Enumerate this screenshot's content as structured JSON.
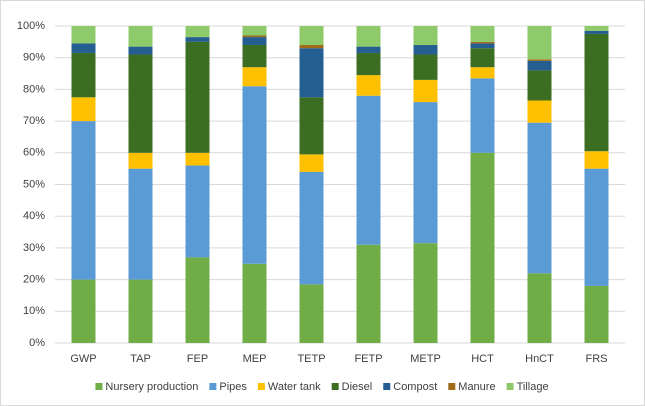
{
  "chart_data": {
    "type": "stacked_bar",
    "categories": [
      "GWP",
      "TAP",
      "FEP",
      "MEP",
      "TETP",
      "FETP",
      "METP",
      "HCT",
      "HnCT",
      "FRS"
    ],
    "series": [
      {
        "name": "Nursery production",
        "color": "#70ad47",
        "values": [
          20,
          20,
          27,
          25,
          18.5,
          31,
          31.5,
          60,
          22,
          18
        ]
      },
      {
        "name": "Pipes",
        "color": "#5b9bd5",
        "values": [
          50,
          35,
          29,
          56,
          35.5,
          47,
          44.5,
          23.5,
          47.5,
          37
        ]
      },
      {
        "name": "Water tank",
        "color": "#ffc000",
        "values": [
          7.5,
          5,
          4,
          6,
          5.5,
          6.5,
          7,
          3.5,
          7,
          5.5
        ]
      },
      {
        "name": "Diesel",
        "color": "#3b6e22",
        "values": [
          14,
          31,
          35,
          7,
          18,
          7,
          8,
          6,
          9.5,
          37
        ]
      },
      {
        "name": "Compost",
        "color": "#255e91",
        "values": [
          3,
          2.5,
          1.5,
          2.5,
          15.5,
          2,
          3,
          1.5,
          3,
          1
        ]
      },
      {
        "name": "Manure",
        "color": "#9e6b19",
        "values": [
          0,
          0,
          0,
          0.5,
          1,
          0,
          0,
          0.5,
          0.5,
          0
        ]
      },
      {
        "name": "Tillage",
        "color": "#8fca6a",
        "values": [
          5.5,
          6.5,
          3.5,
          3,
          6,
          6.5,
          6,
          5,
          10.5,
          1.5
        ]
      }
    ],
    "ylim": [
      0,
      100
    ],
    "yticks": [
      {
        "value": 0,
        "label": "0%"
      },
      {
        "value": 10,
        "label": "10%"
      },
      {
        "value": 20,
        "label": "20%"
      },
      {
        "value": 30,
        "label": "30%"
      },
      {
        "value": 40,
        "label": "40%"
      },
      {
        "value": 50,
        "label": "50%"
      },
      {
        "value": 60,
        "label": "60%"
      },
      {
        "value": 70,
        "label": "70%"
      },
      {
        "value": 80,
        "label": "80%"
      },
      {
        "value": 90,
        "label": "90%"
      },
      {
        "value": 100,
        "label": "100%"
      }
    ],
    "grid": true,
    "legend": "bottom"
  }
}
